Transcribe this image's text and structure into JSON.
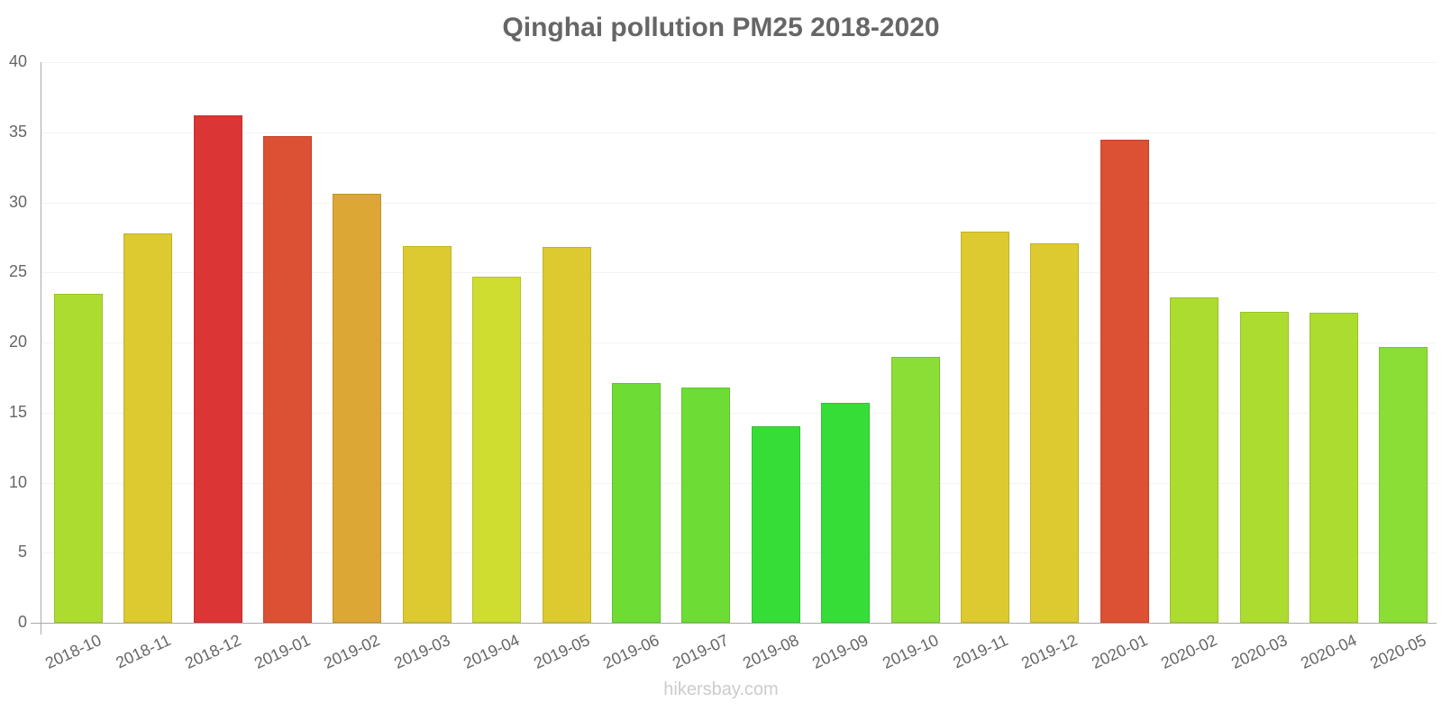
{
  "chart_data": {
    "type": "bar",
    "title": "Qinghai pollution PM25 2018-2020",
    "xlabel": "",
    "ylabel": "",
    "ylim": [
      0,
      40
    ],
    "yticks": [
      "0",
      "5",
      "10",
      "15",
      "20",
      "25",
      "30",
      "35",
      "40"
    ],
    "grid": true,
    "legend": null,
    "categories": [
      "2018-10",
      "2018-11",
      "2018-12",
      "2019-01",
      "2019-02",
      "2019-03",
      "2019-04",
      "2019-05",
      "2019-06",
      "2019-07",
      "2019-08",
      "2019-09",
      "2019-10",
      "2019-11",
      "2019-12",
      "2020-01",
      "2020-02",
      "2020-03",
      "2020-04",
      "2020-05"
    ],
    "values": [
      23.5,
      27.8,
      36.2,
      34.7,
      30.6,
      26.9,
      24.7,
      26.8,
      17.1,
      16.8,
      14.0,
      15.7,
      19.0,
      27.9,
      27.1,
      34.5,
      23.2,
      22.2,
      22.1,
      19.7
    ],
    "colors": [
      "#addc30",
      "#dcca30",
      "#db3535",
      "#dc5034",
      "#dca734",
      "#dcca30",
      "#cfdc30",
      "#dcca30",
      "#6ddd35",
      "#6ddd35",
      "#37dd37",
      "#37dd37",
      "#8ade35",
      "#dcca30",
      "#dcca30",
      "#dc5034",
      "#addc30",
      "#addc30",
      "#addc30",
      "#8ade35"
    ]
  },
  "watermark": "hikersbay.com"
}
